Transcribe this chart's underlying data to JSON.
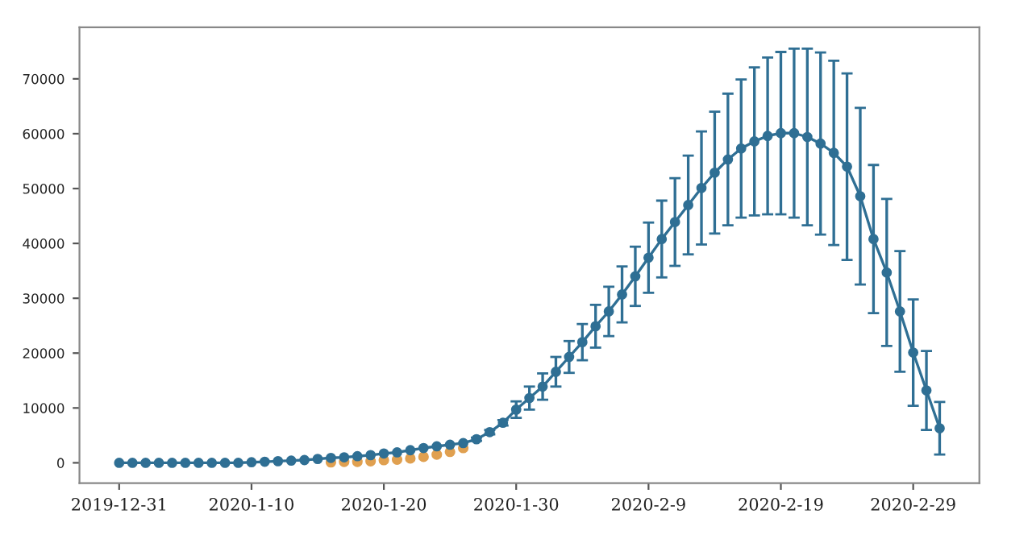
{
  "chart_data": {
    "type": "line",
    "xlim": [
      "2019-12-28",
      "2020-03-05"
    ],
    "xticks": [
      {
        "value": "2019-12-31",
        "label": "2019-12-31"
      },
      {
        "value": "2020-01-10",
        "label": "2020-1-10"
      },
      {
        "value": "2020-01-20",
        "label": "2020-1-20"
      },
      {
        "value": "2020-01-30",
        "label": "2020-1-30"
      },
      {
        "value": "2020-02-09",
        "label": "2020-2-9"
      },
      {
        "value": "2020-02-19",
        "label": "2020-2-19"
      },
      {
        "value": "2020-02-29",
        "label": "2020-2-29"
      }
    ],
    "ylim": [
      -3700,
      79400
    ],
    "yticks": [
      0,
      10000,
      20000,
      30000,
      40000,
      50000,
      60000,
      70000
    ],
    "grid": false,
    "marker": "circle",
    "line_style": "solid",
    "series": [
      {
        "color": "#2f6f94",
        "x": [
          "2019-12-31",
          "2020-01-01",
          "2020-01-02",
          "2020-01-03",
          "2020-01-04",
          "2020-01-05",
          "2020-01-06",
          "2020-01-07",
          "2020-01-08",
          "2020-01-09",
          "2020-01-10",
          "2020-01-11",
          "2020-01-12",
          "2020-01-13",
          "2020-01-14",
          "2020-01-15",
          "2020-01-16",
          "2020-01-17",
          "2020-01-18",
          "2020-01-19",
          "2020-01-20",
          "2020-01-21",
          "2020-01-22",
          "2020-01-23",
          "2020-01-24",
          "2020-01-25",
          "2020-01-26",
          "2020-01-27",
          "2020-01-28",
          "2020-01-29",
          "2020-01-30",
          "2020-01-31",
          "2020-02-01",
          "2020-02-02",
          "2020-02-03",
          "2020-02-04",
          "2020-02-05",
          "2020-02-06",
          "2020-02-07",
          "2020-02-08",
          "2020-02-09",
          "2020-02-10",
          "2020-02-11",
          "2020-02-12",
          "2020-02-13",
          "2020-02-14",
          "2020-02-15",
          "2020-02-16",
          "2020-02-17",
          "2020-02-18",
          "2020-02-19",
          "2020-02-20",
          "2020-02-21",
          "2020-02-22",
          "2020-02-23",
          "2020-02-24",
          "2020-02-25",
          "2020-02-26",
          "2020-02-27",
          "2020-02-28",
          "2020-02-29",
          "2020-03-01",
          "2020-03-02"
        ],
        "values": [
          0,
          0,
          0,
          0,
          0,
          0,
          0,
          0,
          0,
          0,
          100,
          200,
          300,
          400,
          500,
          700,
          900,
          1000,
          1200,
          1400,
          1700,
          1900,
          2300,
          2700,
          3000,
          3300,
          3600,
          4300,
          5600,
          7300,
          9700,
          11800,
          13900,
          16600,
          19300,
          22000,
          24900,
          27600,
          30700,
          34000,
          37400,
          40800,
          43900,
          47000,
          50100,
          52900,
          55300,
          57300,
          58600,
          59600,
          60100,
          60100,
          59400,
          58200,
          56500,
          54000,
          48600,
          40800,
          34700,
          27600,
          20100,
          13200,
          6300
        ],
        "errors": [
          null,
          null,
          null,
          null,
          null,
          null,
          null,
          null,
          null,
          null,
          null,
          null,
          null,
          null,
          null,
          null,
          null,
          null,
          null,
          null,
          null,
          null,
          null,
          null,
          null,
          null,
          null,
          300,
          400,
          500,
          1500,
          2100,
          2400,
          2700,
          2900,
          3300,
          3900,
          4500,
          5100,
          5400,
          6400,
          7000,
          8000,
          9000,
          10300,
          11100,
          12000,
          12600,
          13500,
          14300,
          14800,
          15400,
          16100,
          16600,
          16800,
          17000,
          16100,
          13500,
          13400,
          11000,
          9700,
          7200,
          4800
        ]
      },
      {
        "type": "scatter",
        "color": "#e0a050",
        "x": [
          "2020-01-16",
          "2020-01-17",
          "2020-01-18",
          "2020-01-19",
          "2020-01-20",
          "2020-01-21",
          "2020-01-22",
          "2020-01-23",
          "2020-01-24",
          "2020-01-25",
          "2020-01-26"
        ],
        "values": [
          100,
          200,
          200,
          300,
          500,
          600,
          800,
          1100,
          1500,
          2000,
          2700
        ]
      }
    ]
  }
}
